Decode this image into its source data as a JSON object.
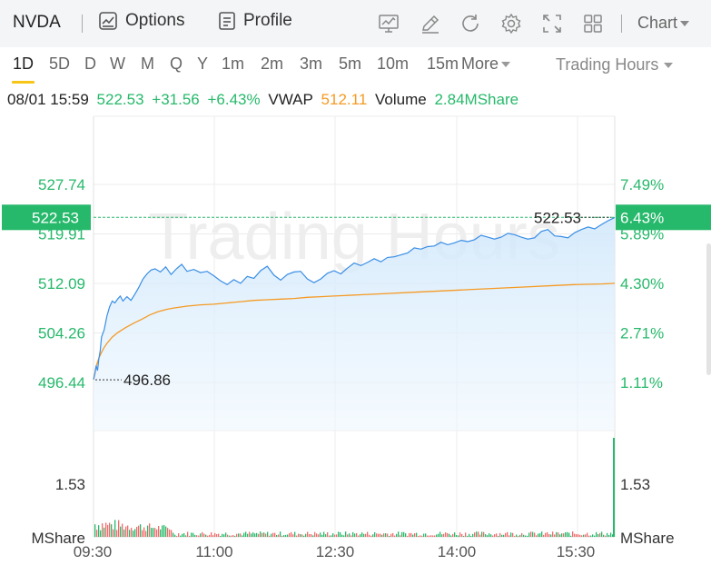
{
  "header": {
    "ticker": "NVDA",
    "options_label": "Options",
    "profile_label": "Profile",
    "chart_label": "Chart"
  },
  "periods": {
    "items": [
      "1D",
      "5D",
      "D",
      "W",
      "M",
      "Q",
      "Y",
      "1m",
      "2m",
      "3m",
      "5m",
      "10m",
      "15m"
    ],
    "active": "1D",
    "more_label": "More",
    "session_label": "Trading Hours"
  },
  "quote": {
    "datetime": "08/01 15:59",
    "price": "522.53",
    "change": "+31.56",
    "change_pct": "+6.43%",
    "vwap_label": "VWAP",
    "vwap_value": "512.11",
    "volume_label": "Volume",
    "volume_value": "2.84MShare"
  },
  "watermark": "Trading Hours",
  "colors": {
    "up": "#27b96b",
    "vwap": "#f59a23",
    "price_line": "#3a8ee6",
    "down": "#f26b6b",
    "accent": "#f5c518"
  },
  "chart_data": {
    "type": "line",
    "x_ticks": [
      "09:30",
      "11:00",
      "12:30",
      "14:00",
      "15:30"
    ],
    "price_ticks": [
      "527.74",
      "519.91",
      "512.09",
      "504.26",
      "496.44"
    ],
    "pct_ticks": [
      "7.49%",
      "5.89%",
      "4.30%",
      "2.71%",
      "1.11%"
    ],
    "current_price_tag": "522.53",
    "current_pct_tag": "6.43%",
    "high_label": "522.53",
    "low_label": "496.86",
    "volume_tick": "1.53",
    "volume_unit": "MShare",
    "ylim": [
      496.44,
      527.74
    ],
    "series": [
      {
        "x": [
          0,
          1,
          2,
          3,
          4,
          5,
          6,
          8,
          10,
          12,
          14,
          16,
          18,
          20,
          22,
          25,
          28,
          31,
          34,
          37,
          40,
          43,
          46,
          50,
          54,
          58,
          62,
          66,
          70,
          75,
          80,
          85,
          90,
          95,
          100,
          105,
          110,
          115,
          120,
          125,
          130,
          135,
          140,
          145,
          150,
          155,
          160,
          165,
          170,
          175,
          180,
          185,
          190,
          195,
          200,
          205,
          210,
          215,
          220,
          225,
          230,
          235,
          240,
          245,
          250,
          255,
          260,
          265,
          270,
          275,
          280,
          285,
          290,
          295,
          300,
          305,
          310,
          315,
          320,
          325,
          330,
          335,
          340,
          345,
          350,
          355,
          360,
          365,
          370,
          375,
          380,
          385,
          389,
          390
        ],
        "values": [
          496.9,
          497.8,
          499.1,
          498.3,
          500.2,
          501.5,
          503.6,
          504.8,
          506.9,
          508.4,
          509.3,
          509.0,
          509.6,
          510.1,
          509.3,
          510.0,
          509.4,
          510.4,
          511.5,
          512.8,
          513.6,
          514.2,
          514.4,
          513.9,
          514.7,
          513.5,
          514.4,
          515.1,
          514.0,
          514.3,
          513.8,
          514.0,
          513.3,
          512.5,
          511.9,
          512.7,
          512.1,
          513.2,
          512.9,
          514.1,
          514.8,
          513.4,
          512.6,
          513.5,
          513.9,
          514.0,
          512.8,
          512.2,
          512.8,
          513.7,
          514.1,
          513.6,
          514.5,
          515.3,
          514.9,
          515.4,
          516.0,
          515.5,
          516.2,
          516.3,
          516.6,
          516.9,
          517.7,
          517.5,
          517.9,
          518.0,
          518.6,
          518.2,
          518.5,
          518.9,
          518.7,
          519.0,
          519.7,
          519.4,
          519.1,
          519.4,
          520.0,
          519.8,
          519.4,
          519.1,
          519.3,
          520.3,
          520.6,
          519.6,
          519.5,
          519.3,
          520.1,
          520.6,
          521.0,
          520.7,
          521.4,
          522.0,
          522.4,
          522.53
        ],
        "name": ""
      },
      {
        "x": [
          0,
          1,
          2,
          4,
          6,
          8,
          10,
          14,
          18,
          24,
          30,
          36,
          42,
          48,
          55,
          60,
          70,
          80,
          90,
          100,
          110,
          120,
          130,
          140,
          150,
          160,
          170,
          180,
          190,
          200,
          220,
          240,
          260,
          280,
          300,
          320,
          340,
          360,
          380,
          390
        ],
        "values": [
          496.9,
          497.9,
          499.0,
          500.3,
          501.2,
          502.0,
          502.6,
          503.6,
          504.3,
          505.1,
          505.8,
          506.4,
          507.1,
          507.6,
          508.0,
          508.2,
          508.5,
          508.7,
          508.8,
          509.0,
          509.2,
          509.4,
          509.5,
          509.6,
          509.7,
          509.9,
          510.0,
          510.1,
          510.2,
          510.3,
          510.5,
          510.7,
          510.9,
          511.1,
          511.3,
          511.5,
          511.7,
          511.9,
          512.0,
          512.11
        ],
        "name": ""
      }
    ]
  }
}
